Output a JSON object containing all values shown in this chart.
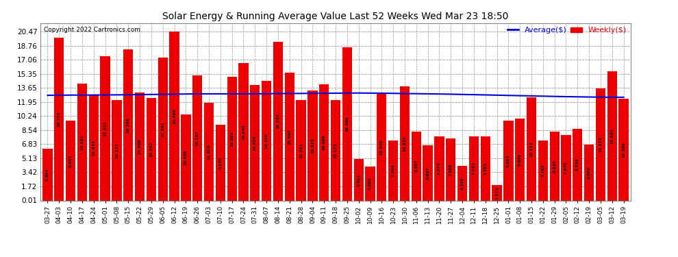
{
  "title": "Solar Energy & Running Average Value Last 52 Weeks Wed Mar 23 18:50",
  "copyright": "Copyright 2022 Cartronics.com",
  "categories": [
    "03-27",
    "04-03",
    "04-10",
    "04-17",
    "04-24",
    "05-01",
    "05-08",
    "05-15",
    "05-22",
    "05-29",
    "06-05",
    "06-12",
    "06-19",
    "06-26",
    "07-03",
    "07-10",
    "07-17",
    "07-24",
    "07-31",
    "08-07",
    "08-14",
    "08-21",
    "08-28",
    "09-04",
    "09-11",
    "09-18",
    "09-25",
    "10-02",
    "10-09",
    "10-16",
    "10-23",
    "10-30",
    "11-06",
    "11-13",
    "11-20",
    "11-27",
    "12-04",
    "12-11",
    "12-18",
    "12-25",
    "01-01",
    "01-08",
    "01-15",
    "01-22",
    "01-29",
    "02-05",
    "02-12",
    "02-19",
    "03-05",
    "03-12",
    "03-19"
  ],
  "weekly_values": [
    6.304,
    19.772,
    9.651,
    14.181,
    12.843,
    17.521,
    12.177,
    18.346,
    13.088,
    12.452,
    17.341,
    20.468,
    10.459,
    15.187,
    11.814,
    9.159,
    15.022,
    16.646,
    14.004,
    14.47,
    19.235,
    15.507,
    12.191,
    13.323,
    14.069,
    12.172,
    18.601,
    5.001,
    4.096,
    12.94,
    7.304,
    13.825,
    8.397,
    6.697,
    7.774,
    7.506,
    4.226,
    7.743,
    7.791,
    1.873,
    9.663,
    9.939,
    12.511,
    7.262,
    8.344,
    7.978,
    8.72,
    6.806,
    13.615,
    15.685,
    12.359
  ],
  "average_values": [
    12.75,
    12.77,
    12.78,
    12.78,
    12.79,
    12.8,
    12.81,
    12.82,
    12.84,
    12.86,
    12.87,
    12.89,
    12.91,
    12.93,
    12.93,
    12.93,
    12.93,
    12.93,
    12.94,
    12.95,
    12.96,
    12.97,
    12.98,
    12.99,
    13.0,
    13.01,
    13.02,
    13.03,
    13.02,
    13.01,
    12.99,
    12.97,
    12.95,
    12.93,
    12.91,
    12.89,
    12.86,
    12.83,
    12.8,
    12.77,
    12.74,
    12.71,
    12.68,
    12.65,
    12.62,
    12.59,
    12.57,
    12.55,
    12.53,
    12.52,
    12.52
  ],
  "bar_color": "#ee0000",
  "line_color": "#0000dd",
  "background_color": "#ffffff",
  "plot_bg_color": "#ffffff",
  "grid_color": "#999999",
  "yticks": [
    0.01,
    1.72,
    3.42,
    5.13,
    6.83,
    8.54,
    10.24,
    11.95,
    13.65,
    15.35,
    17.06,
    18.76,
    20.47
  ],
  "legend_avg_label": "Average($)",
  "legend_weekly_label": "Weekly($)",
  "legend_avg_color": "#0000dd",
  "legend_weekly_color": "#ee0000"
}
